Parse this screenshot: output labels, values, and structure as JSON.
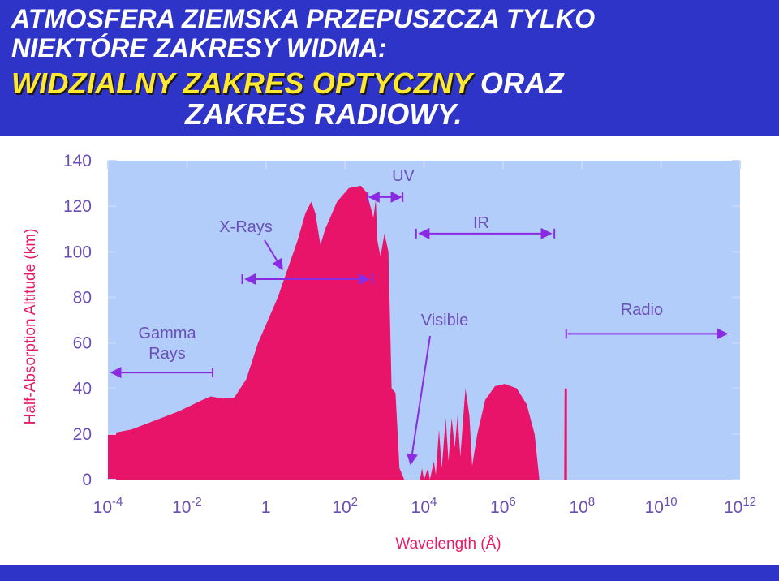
{
  "header": {
    "line1": "ATMOSFERA ZIEMSKA PRZEPUSZCZA TYLKO",
    "line2": "NIEKTÓRE ZAKRESY WIDMA:",
    "line3_highlight": "WIDZIALNY ZAKRES OPTYCZNY",
    "line3_rest": " ORAZ",
    "line4_highlight": "ZAKRES  RADIOWY."
  },
  "colors": {
    "header_bg": "#2f34c8",
    "plot_bg": "#b3cdfb",
    "fill": "#e8146a",
    "tick_text": "#6a4fb6",
    "annotation": "#8a2be2",
    "highlight_text": "#ffe830"
  },
  "chart_data": {
    "type": "area",
    "xscale": "log",
    "xlabel": "Wavelength (Å)",
    "ylabel": "Half-Absorption Altitude (km)",
    "xlim": [
      0.0001,
      1000000000000
    ],
    "ylim": [
      0,
      140
    ],
    "x_ticks": [
      {
        "base": "10",
        "exp": "-4"
      },
      {
        "base": "10",
        "exp": "-2"
      },
      {
        "base": "1",
        "exp": ""
      },
      {
        "base": "10",
        "exp": "2"
      },
      {
        "base": "10",
        "exp": "4"
      },
      {
        "base": "10",
        "exp": "6"
      },
      {
        "base": "10",
        "exp": "8"
      },
      {
        "base": "10",
        "exp": "10"
      },
      {
        "base": "10",
        "exp": "12"
      }
    ],
    "y_ticks": [
      "0",
      "20",
      "40",
      "60",
      "80",
      "100",
      "120",
      "140"
    ],
    "y_tick_values": [
      0,
      20,
      40,
      60,
      80,
      100,
      120,
      140
    ],
    "absorption_curve": [
      [
        -4.0,
        20
      ],
      [
        -3.4,
        22
      ],
      [
        -2.8,
        26
      ],
      [
        -2.2,
        30
      ],
      [
        -1.6,
        35
      ],
      [
        -1.4,
        36.5
      ],
      [
        -1.1,
        35.5
      ],
      [
        -0.8,
        36
      ],
      [
        -0.5,
        44
      ],
      [
        -0.2,
        60
      ],
      [
        0.3,
        80
      ],
      [
        0.8,
        105
      ],
      [
        1.0,
        117
      ],
      [
        1.15,
        122
      ],
      [
        1.25,
        117
      ],
      [
        1.38,
        103
      ],
      [
        1.5,
        110
      ],
      [
        1.8,
        122
      ],
      [
        2.1,
        128
      ],
      [
        2.4,
        129
      ],
      [
        2.55,
        126
      ],
      [
        2.72,
        115
      ],
      [
        2.78,
        123
      ],
      [
        2.82,
        105
      ],
      [
        2.9,
        98
      ],
      [
        3.0,
        108
      ],
      [
        3.1,
        100
      ],
      [
        3.18,
        40
      ],
      [
        3.28,
        38
      ],
      [
        3.38,
        5
      ],
      [
        3.5,
        0
      ],
      [
        3.9,
        0
      ],
      [
        3.95,
        5
      ],
      [
        4.0,
        0
      ],
      [
        4.1,
        5
      ],
      [
        4.15,
        0
      ],
      [
        4.25,
        8
      ],
      [
        4.3,
        2
      ],
      [
        4.38,
        22
      ],
      [
        4.45,
        5
      ],
      [
        4.55,
        27
      ],
      [
        4.62,
        8
      ],
      [
        4.7,
        27
      ],
      [
        4.78,
        14
      ],
      [
        4.85,
        28
      ],
      [
        4.92,
        10
      ],
      [
        5.05,
        40
      ],
      [
        5.15,
        28
      ],
      [
        5.22,
        6
      ],
      [
        5.35,
        20
      ],
      [
        5.55,
        35
      ],
      [
        5.8,
        41
      ],
      [
        6.05,
        42
      ],
      [
        6.35,
        40
      ],
      [
        6.6,
        33
      ],
      [
        6.8,
        20
      ],
      [
        6.92,
        0
      ],
      [
        7.55,
        0
      ],
      [
        7.56,
        40
      ],
      [
        7.62,
        40
      ],
      [
        7.62,
        0
      ],
      [
        12.0,
        0
      ]
    ],
    "annotations": [
      {
        "label": "Gamma",
        "label2": "Rays",
        "range": [
          -4,
          -1.35
        ],
        "altitude": 47
      },
      {
        "label": "X-Rays",
        "range": [
          -0.6,
          2.7
        ],
        "altitude": 88
      },
      {
        "label": "UV",
        "range": [
          2.7,
          3.5
        ],
        "altitude": 124
      },
      {
        "label": "IR",
        "range": [
          3.8,
          7.3
        ],
        "altitude": 108
      },
      {
        "label": "Visible",
        "altitude": 68
      },
      {
        "label": "Radio",
        "range": [
          7.6,
          12.0
        ],
        "altitude": 64
      }
    ]
  }
}
